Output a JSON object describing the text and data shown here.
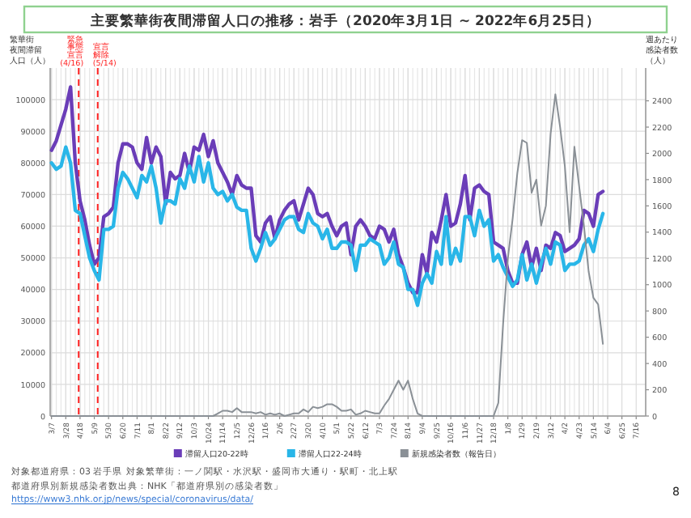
{
  "chart_data": {
    "type": "line",
    "title": "主要繁華街夜間滞留人口の推移：岩手（2020年3月1日 ~ 2022年6月25日）",
    "ylabel": "繁華街夜間滞留人口（人）",
    "y2label": "週あたり感染者数（人）",
    "x": [
      "2020-03-07",
      "2020-03-14",
      "2020-03-21",
      "2020-03-28",
      "2020-04-04",
      "2020-04-11",
      "2020-04-18",
      "2020-04-25",
      "2020-05-02",
      "2020-05-09",
      "2020-05-16",
      "2020-05-23",
      "2020-05-30",
      "2020-06-06",
      "2020-06-13",
      "2020-06-20",
      "2020-06-27",
      "2020-07-04",
      "2020-07-11",
      "2020-07-18",
      "2020-07-25",
      "2020-08-01",
      "2020-08-08",
      "2020-08-15",
      "2020-08-22",
      "2020-08-29",
      "2020-09-05",
      "2020-09-12",
      "2020-09-19",
      "2020-09-26",
      "2020-10-03",
      "2020-10-10",
      "2020-10-17",
      "2020-10-24",
      "2020-10-31",
      "2020-11-07",
      "2020-11-14",
      "2020-11-21",
      "2020-11-28",
      "2020-12-05",
      "2020-12-12",
      "2020-12-19",
      "2020-12-26",
      "2021-01-02",
      "2021-01-09",
      "2021-01-16",
      "2021-01-23",
      "2021-01-30",
      "2021-02-06",
      "2021-02-13",
      "2021-02-20",
      "2021-02-27",
      "2021-03-06",
      "2021-03-13",
      "2021-03-20",
      "2021-03-27",
      "2021-04-03",
      "2021-04-10",
      "2021-04-17",
      "2021-04-24",
      "2021-05-01",
      "2021-05-08",
      "2021-05-15",
      "2021-05-22",
      "2021-05-29",
      "2021-06-05",
      "2021-06-12",
      "2021-06-19",
      "2021-06-26",
      "2021-07-03",
      "2021-07-10",
      "2021-07-17",
      "2021-07-24",
      "2021-07-31",
      "2021-08-07",
      "2021-08-14",
      "2021-08-21",
      "2021-08-28",
      "2021-09-04",
      "2021-09-11",
      "2021-09-18",
      "2021-09-25",
      "2021-10-02",
      "2021-10-09",
      "2021-10-16",
      "2021-10-23",
      "2021-10-30",
      "2021-11-06",
      "2021-11-13",
      "2021-11-20",
      "2021-11-27",
      "2021-12-04",
      "2021-12-11",
      "2021-12-18",
      "2021-12-25",
      "2022-01-01",
      "2022-01-08",
      "2022-01-15",
      "2022-01-22",
      "2022-01-29",
      "2022-02-05",
      "2022-02-12",
      "2022-02-19",
      "2022-02-26",
      "2022-03-05",
      "2022-03-12",
      "2022-03-19",
      "2022-03-26",
      "2022-04-02",
      "2022-04-09",
      "2022-04-16",
      "2022-04-23",
      "2022-04-30",
      "2022-05-07",
      "2022-05-14",
      "2022-05-21",
      "2022-05-28"
    ],
    "series": [
      {
        "name": "滞留人口20-22時",
        "color": "#6a3db8",
        "values": [
          84000,
          87000,
          92000,
          97000,
          104000,
          80000,
          68000,
          62000,
          54000,
          48000,
          50000,
          63000,
          64000,
          66000,
          80000,
          86000,
          86000,
          85000,
          80000,
          78000,
          88000,
          80000,
          85000,
          82000,
          67000,
          77000,
          75000,
          76000,
          83000,
          77000,
          85000,
          84000,
          89000,
          82000,
          87000,
          80000,
          77000,
          74000,
          70000,
          76000,
          73000,
          72000,
          72000,
          57000,
          55000,
          61000,
          63000,
          56000,
          62000,
          65000,
          67000,
          68000,
          62000,
          67000,
          72000,
          70000,
          64000,
          63000,
          64000,
          60000,
          57000,
          60000,
          61000,
          51000,
          60000,
          62000,
          60000,
          57000,
          56000,
          60000,
          59000,
          55000,
          59000,
          51000,
          47000,
          42000,
          39000,
          39000,
          51000,
          45000,
          58000,
          55000,
          62000,
          70000,
          60000,
          61000,
          67000,
          76000,
          62000,
          72000,
          73000,
          71000,
          70000,
          55000,
          54000,
          53000,
          46000,
          42000,
          42000,
          51000,
          55000,
          47000,
          53000,
          46000,
          54000,
          53000,
          58000,
          57000,
          52000,
          53000,
          54000,
          56000,
          65000,
          64000,
          60000,
          70000,
          71000
        ]
      },
      {
        "name": "滞留人口22-24時",
        "color": "#29b6e8",
        "values": [
          80000,
          78000,
          79000,
          85000,
          80000,
          65000,
          64000,
          57000,
          50000,
          46000,
          43000,
          59000,
          59000,
          60000,
          72000,
          77000,
          75000,
          72000,
          69000,
          76000,
          74000,
          79000,
          72000,
          61000,
          68000,
          68000,
          67000,
          75000,
          72000,
          79000,
          74000,
          82000,
          74000,
          80000,
          72000,
          70000,
          71000,
          68000,
          70000,
          66000,
          65000,
          65000,
          53000,
          49000,
          53000,
          58000,
          54000,
          56000,
          59000,
          62000,
          63000,
          63000,
          59000,
          58000,
          64000,
          61000,
          60000,
          56000,
          59000,
          53000,
          53000,
          55000,
          55000,
          54000,
          46000,
          54000,
          54000,
          56000,
          55000,
          54000,
          48000,
          50000,
          55000,
          48000,
          47000,
          40000,
          40000,
          35000,
          42000,
          45000,
          42000,
          52000,
          48000,
          63000,
          48000,
          53000,
          49000,
          63000,
          63000,
          57000,
          65000,
          60000,
          62000,
          49000,
          51000,
          47000,
          44000,
          41000,
          43000,
          51000,
          43000,
          48000,
          42000,
          48000,
          53000,
          48000,
          55000,
          54000,
          46000,
          48000,
          48000,
          49000,
          54000,
          56000,
          52000,
          59000,
          64000
        ]
      },
      {
        "name": "新規感染者数（報告日）",
        "color": "#8a9096",
        "axis": "y2",
        "values": [
          0,
          0,
          0,
          0,
          0,
          0,
          0,
          0,
          0,
          0,
          0,
          0,
          0,
          0,
          0,
          0,
          0,
          0,
          0,
          0,
          0,
          0,
          0,
          0,
          0,
          0,
          0,
          0,
          0,
          0,
          0,
          0,
          0,
          0,
          0,
          20,
          40,
          40,
          30,
          60,
          30,
          30,
          30,
          20,
          30,
          10,
          20,
          10,
          20,
          0,
          10,
          20,
          20,
          50,
          30,
          70,
          60,
          70,
          90,
          90,
          70,
          40,
          40,
          50,
          10,
          20,
          40,
          30,
          20,
          20,
          80,
          130,
          200,
          270,
          200,
          270,
          130,
          20,
          0,
          0,
          0,
          0,
          0,
          0,
          0,
          0,
          0,
          0,
          0,
          0,
          0,
          0,
          0,
          0,
          100,
          700,
          1200,
          1500,
          1850,
          2100,
          2080,
          1700,
          1800,
          1450,
          1600,
          2150,
          2450,
          2200,
          1900,
          1400,
          2050,
          1750,
          1450,
          1100,
          900,
          850,
          550
        ]
      }
    ],
    "xlim": [
      "2020-03-05",
      "2022-07-30"
    ],
    "xticks": [
      {
        "value": "2020-03-07",
        "label": "3/7"
      },
      {
        "value": "2020-03-28",
        "label": "3/28"
      },
      {
        "value": "2020-04-18",
        "label": "4/18"
      },
      {
        "value": "2020-05-09",
        "label": "5/9"
      },
      {
        "value": "2020-05-30",
        "label": "5/30"
      },
      {
        "value": "2020-06-20",
        "label": "6/20"
      },
      {
        "value": "2020-07-11",
        "label": "7/11"
      },
      {
        "value": "2020-08-01",
        "label": "8/1"
      },
      {
        "value": "2020-08-22",
        "label": "8/22"
      },
      {
        "value": "2020-09-12",
        "label": "9/12"
      },
      {
        "value": "2020-10-03",
        "label": "10/3"
      },
      {
        "value": "2020-10-24",
        "label": "10/24"
      },
      {
        "value": "2020-11-14",
        "label": "11/14"
      },
      {
        "value": "2020-12-05",
        "label": "12/5"
      },
      {
        "value": "2020-12-26",
        "label": "12/26"
      },
      {
        "value": "2021-01-16",
        "label": "1/16"
      },
      {
        "value": "2021-02-06",
        "label": "2/6"
      },
      {
        "value": "2021-02-27",
        "label": "2/27"
      },
      {
        "value": "2021-03-20",
        "label": "3/20"
      },
      {
        "value": "2021-04-10",
        "label": "4/10"
      },
      {
        "value": "2021-05-01",
        "label": "5/1"
      },
      {
        "value": "2021-05-22",
        "label": "5/22"
      },
      {
        "value": "2021-06-12",
        "label": "6/12"
      },
      {
        "value": "2021-07-03",
        "label": "7/3"
      },
      {
        "value": "2021-07-24",
        "label": "7/24"
      },
      {
        "value": "2021-08-14",
        "label": "8/14"
      },
      {
        "value": "2021-09-04",
        "label": "9/4"
      },
      {
        "value": "2021-09-25",
        "label": "9/25"
      },
      {
        "value": "2021-10-16",
        "label": "10/16"
      },
      {
        "value": "2021-11-06",
        "label": "11/6"
      },
      {
        "value": "2021-11-27",
        "label": "11/27"
      },
      {
        "value": "2021-12-18",
        "label": "12/18"
      },
      {
        "value": "2022-01-08",
        "label": "1/8"
      },
      {
        "value": "2022-01-29",
        "label": "1/29"
      },
      {
        "value": "2022-02-19",
        "label": "2/19"
      },
      {
        "value": "2022-03-12",
        "label": "3/12"
      },
      {
        "value": "2022-04-02",
        "label": "4/2"
      },
      {
        "value": "2022-04-23",
        "label": "4/23"
      },
      {
        "value": "2022-05-14",
        "label": "5/14"
      },
      {
        "value": "2022-06-04",
        "label": "6/4"
      },
      {
        "value": "2022-06-25",
        "label": "6/25"
      },
      {
        "value": "2022-07-16",
        "label": "7/16"
      }
    ],
    "ylim": [
      0,
      110000
    ],
    "yticks": [
      0,
      10000,
      20000,
      30000,
      40000,
      50000,
      60000,
      70000,
      80000,
      90000,
      100000
    ],
    "y2lim": [
      0,
      2650
    ],
    "y2ticks": [
      0,
      200,
      400,
      600,
      800,
      1000,
      1200,
      1400,
      1600,
      1800,
      2000,
      2200,
      2400
    ],
    "ref_lines": [
      {
        "axis": "x",
        "value": "2020-04-16",
        "label": "緊急事態宣言(4/16)",
        "color": "#ff2020",
        "line_style": "dashed"
      },
      {
        "axis": "x",
        "value": "2020-05-14",
        "label": "宣言解除(5/14)",
        "color": "#ff2020",
        "line_style": "dashed"
      }
    ],
    "grid": true,
    "legend": "bottom",
    "marker": "none",
    "line_style": "solid",
    "annotations": [
      "対象都道府県：03 岩手県",
      "対象繁華街：一ノ関駅・水沢駅・盛岡市大通り・駅町・北上駅",
      "都道府県別新規感染者数出典：NHK「都道府県別の感染者数」https://www3.nhk.or.jp/news/special/coronavirus/data/",
      "8"
    ]
  }
}
